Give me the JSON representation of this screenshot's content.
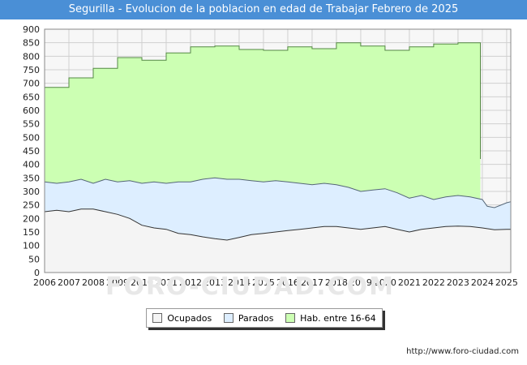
{
  "title": "Segurilla - Evolucion de la poblacion en edad de Trabajar Febrero de 2025",
  "source": "http://www.foro-ciudad.com",
  "watermark": "FORO-CIUDAD.COM",
  "chart_data": {
    "type": "area",
    "title": "Segurilla - Evolucion de la poblacion en edad de Trabajar Febrero de 2025",
    "xlim": [
      2006,
      2025.17
    ],
    "ylim": [
      0,
      900
    ],
    "x_ticks": [
      "2006",
      "2007",
      "2008",
      "2009",
      "2010",
      "2011",
      "2012",
      "2013",
      "2014",
      "2015",
      "2016",
      "2017",
      "2018",
      "2019",
      "2020",
      "2021",
      "2022",
      "2023",
      "2024",
      "2025"
    ],
    "y_ticks": [
      0,
      50,
      100,
      150,
      200,
      250,
      300,
      350,
      400,
      450,
      500,
      550,
      600,
      650,
      700,
      750,
      800,
      850,
      900
    ],
    "grid": true,
    "legend_position": "bottom",
    "series": [
      {
        "name": "Hab. entre 16-64",
        "color": "#ccffb3",
        "line_color": "#558844",
        "points": [
          [
            2006,
            685
          ],
          [
            2007,
            685
          ],
          [
            2007,
            720
          ],
          [
            2008,
            720
          ],
          [
            2008,
            755
          ],
          [
            2009,
            755
          ],
          [
            2009,
            795
          ],
          [
            2010,
            795
          ],
          [
            2010,
            785
          ],
          [
            2011,
            785
          ],
          [
            2011,
            812
          ],
          [
            2012,
            812
          ],
          [
            2012,
            835
          ],
          [
            2013,
            835
          ],
          [
            2013,
            838
          ],
          [
            2014,
            838
          ],
          [
            2014,
            825
          ],
          [
            2015,
            825
          ],
          [
            2015,
            822
          ],
          [
            2016,
            822
          ],
          [
            2016,
            835
          ],
          [
            2017,
            835
          ],
          [
            2017,
            828
          ],
          [
            2018,
            828
          ],
          [
            2018,
            850
          ],
          [
            2019,
            850
          ],
          [
            2019,
            838
          ],
          [
            2020,
            838
          ],
          [
            2020,
            822
          ],
          [
            2021,
            822
          ],
          [
            2021,
            835
          ],
          [
            2022,
            835
          ],
          [
            2022,
            845
          ],
          [
            2023,
            845
          ],
          [
            2023,
            850
          ],
          [
            2023.92,
            850
          ],
          [
            2023.92,
            420
          ]
        ]
      },
      {
        "name": "Parados",
        "color": "#ddeeff",
        "line_color": "#556677",
        "points": [
          [
            2006,
            335
          ],
          [
            2006.5,
            330
          ],
          [
            2007,
            335
          ],
          [
            2007.5,
            345
          ],
          [
            2008,
            330
          ],
          [
            2008.5,
            345
          ],
          [
            2009,
            335
          ],
          [
            2009.5,
            340
          ],
          [
            2010,
            330
          ],
          [
            2010.5,
            335
          ],
          [
            2011,
            330
          ],
          [
            2011.5,
            335
          ],
          [
            2012,
            335
          ],
          [
            2012.5,
            345
          ],
          [
            2013,
            350
          ],
          [
            2013.5,
            345
          ],
          [
            2014,
            345
          ],
          [
            2014.5,
            340
          ],
          [
            2015,
            335
          ],
          [
            2015.5,
            340
          ],
          [
            2016,
            335
          ],
          [
            2016.5,
            330
          ],
          [
            2017,
            325
          ],
          [
            2017.5,
            330
          ],
          [
            2018,
            325
          ],
          [
            2018.5,
            315
          ],
          [
            2019,
            300
          ],
          [
            2019.5,
            305
          ],
          [
            2020,
            310
          ],
          [
            2020.5,
            295
          ],
          [
            2021,
            275
          ],
          [
            2021.5,
            285
          ],
          [
            2022,
            270
          ],
          [
            2022.5,
            280
          ],
          [
            2023,
            285
          ],
          [
            2023.5,
            280
          ],
          [
            2024,
            270
          ],
          [
            2024.2,
            245
          ],
          [
            2024.5,
            240
          ],
          [
            2025,
            258
          ],
          [
            2025.17,
            262
          ]
        ]
      },
      {
        "name": "Ocupados",
        "color": "#f4f4f4",
        "line_color": "#333333",
        "points": [
          [
            2006,
            225
          ],
          [
            2006.5,
            230
          ],
          [
            2007,
            225
          ],
          [
            2007.5,
            235
          ],
          [
            2008,
            235
          ],
          [
            2008.5,
            225
          ],
          [
            2009,
            215
          ],
          [
            2009.5,
            200
          ],
          [
            2010,
            175
          ],
          [
            2010.5,
            165
          ],
          [
            2011,
            160
          ],
          [
            2011.5,
            145
          ],
          [
            2012,
            140
          ],
          [
            2012.5,
            132
          ],
          [
            2013,
            125
          ],
          [
            2013.5,
            120
          ],
          [
            2014,
            130
          ],
          [
            2014.5,
            140
          ],
          [
            2015,
            145
          ],
          [
            2015.5,
            150
          ],
          [
            2016,
            155
          ],
          [
            2016.5,
            160
          ],
          [
            2017,
            165
          ],
          [
            2017.5,
            170
          ],
          [
            2018,
            170
          ],
          [
            2018.5,
            165
          ],
          [
            2019,
            160
          ],
          [
            2019.5,
            165
          ],
          [
            2020,
            170
          ],
          [
            2020.5,
            160
          ],
          [
            2021,
            150
          ],
          [
            2021.5,
            160
          ],
          [
            2022,
            165
          ],
          [
            2022.5,
            170
          ],
          [
            2023,
            172
          ],
          [
            2023.5,
            170
          ],
          [
            2024,
            165
          ],
          [
            2024.5,
            158
          ],
          [
            2025,
            160
          ],
          [
            2025.17,
            160
          ]
        ]
      }
    ]
  }
}
